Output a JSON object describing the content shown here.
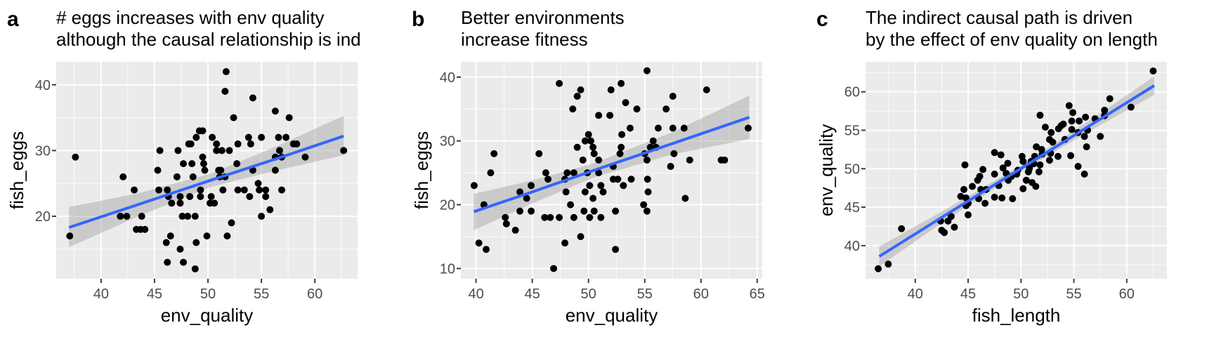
{
  "chart_data": [
    {
      "type": "scatter",
      "panel_label": "a",
      "title": [
        "# eggs increases with env quality",
        "although the causal relationship is ind"
      ],
      "xlabel": "env_quality",
      "ylabel": "fish_eggs",
      "xlim": [
        35.8,
        64.0
      ],
      "ylim": [
        10.5,
        43.5
      ],
      "xticks": [
        40,
        45,
        50,
        55,
        60
      ],
      "yticks": [
        20,
        30,
        40
      ],
      "xminor": [
        37.5,
        42.5,
        47.5,
        52.5,
        57.5,
        62.5
      ],
      "yminor": [
        15,
        25,
        35
      ],
      "grid": true,
      "points": [
        [
          37.07,
          17
        ],
        [
          37.6,
          29
        ],
        [
          42.06,
          26
        ],
        [
          41.8,
          20
        ],
        [
          42.4,
          20
        ],
        [
          43.1,
          24
        ],
        [
          43.3,
          18
        ],
        [
          43.7,
          18
        ],
        [
          44.1,
          18
        ],
        [
          43.8,
          20
        ],
        [
          45.3,
          27
        ],
        [
          45.5,
          30
        ],
        [
          45.4,
          24
        ],
        [
          46.2,
          24
        ],
        [
          46.3,
          23
        ],
        [
          46.6,
          22
        ],
        [
          46.1,
          16
        ],
        [
          46.5,
          17
        ],
        [
          46.2,
          13
        ],
        [
          47.1,
          26
        ],
        [
          47.2,
          30
        ],
        [
          47.4,
          23
        ],
        [
          47.4,
          22
        ],
        [
          47.4,
          15
        ],
        [
          47.7,
          13
        ],
        [
          47.7,
          28
        ],
        [
          47.6,
          20
        ],
        [
          48.1,
          20
        ],
        [
          48.3,
          23
        ],
        [
          48.2,
          31
        ],
        [
          48.4,
          31
        ],
        [
          48.5,
          28
        ],
        [
          48.6,
          26
        ],
        [
          48.9,
          32
        ],
        [
          48.8,
          20
        ],
        [
          48.9,
          16
        ],
        [
          48.8,
          12
        ],
        [
          49.2,
          33
        ],
        [
          49.5,
          33
        ],
        [
          49.5,
          29
        ],
        [
          49.6,
          28
        ],
        [
          49.7,
          27
        ],
        [
          49.3,
          24
        ],
        [
          49.3,
          23
        ],
        [
          49.9,
          17
        ],
        [
          50.3,
          23
        ],
        [
          50.2,
          22
        ],
        [
          50.6,
          22
        ],
        [
          50.4,
          32
        ],
        [
          50.8,
          31
        ],
        [
          50.8,
          30
        ],
        [
          51.0,
          27
        ],
        [
          51.2,
          27
        ],
        [
          51.1,
          26
        ],
        [
          51.6,
          26
        ],
        [
          51.4,
          24
        ],
        [
          51.3,
          30
        ],
        [
          51.6,
          39
        ],
        [
          51.7,
          42
        ],
        [
          51.8,
          17
        ],
        [
          52.0,
          30
        ],
        [
          52.2,
          19
        ],
        [
          52.4,
          35
        ],
        [
          52.8,
          31
        ],
        [
          52.7,
          28
        ],
        [
          52.8,
          24
        ],
        [
          53.4,
          24
        ],
        [
          53.8,
          32
        ],
        [
          54.0,
          31
        ],
        [
          53.9,
          23
        ],
        [
          54.2,
          27
        ],
        [
          54.2,
          38
        ],
        [
          54.7,
          25
        ],
        [
          54.8,
          24
        ],
        [
          55.4,
          24
        ],
        [
          55.4,
          23
        ],
        [
          55.0,
          32
        ],
        [
          55.0,
          20
        ],
        [
          55.8,
          21
        ],
        [
          56.3,
          36
        ],
        [
          56.3,
          27
        ],
        [
          56.3,
          29
        ],
        [
          56.6,
          32
        ],
        [
          56.7,
          30
        ],
        [
          56.9,
          29
        ],
        [
          56.9,
          24
        ],
        [
          57.3,
          32
        ],
        [
          57.6,
          35
        ],
        [
          58.0,
          31
        ],
        [
          58.3,
          31
        ],
        [
          59.1,
          29
        ],
        [
          62.7,
          30
        ]
      ],
      "fit": {
        "x": [
          37.0,
          43.5,
          50.3,
          56.5,
          62.7
        ],
        "y": [
          18.3,
          21.8,
          25.5,
          28.8,
          32.2
        ],
        "lower": [
          15.3,
          20.0,
          24.5,
          27.0,
          29.3
        ],
        "upper": [
          21.4,
          23.5,
          26.5,
          30.7,
          35.3
        ]
      },
      "colors": {
        "points": "#000000",
        "fit": "#3366ff",
        "band": "#999999",
        "panel": "#ebebeb"
      }
    },
    {
      "type": "scatter",
      "panel_label": "b",
      "title": [
        "Better environments",
        "increase fitness"
      ],
      "xlabel": "env_quality",
      "ylabel": "fish_eggs",
      "xlim": [
        38.65,
        65.45
      ],
      "ylim": [
        8.4,
        42.4
      ],
      "xticks": [
        40,
        45,
        50,
        55,
        60,
        65
      ],
      "yticks": [
        10,
        20,
        30,
        40
      ],
      "xminor": [
        42.5,
        47.5,
        52.5,
        57.5,
        62.5
      ],
      "yminor": [
        15,
        25,
        35
      ],
      "grid": true,
      "points": [
        [
          39.83,
          23
        ],
        [
          40.25,
          14
        ],
        [
          40.7,
          20
        ],
        [
          40.9,
          13
        ],
        [
          41.3,
          25
        ],
        [
          41.6,
          28
        ],
        [
          42.6,
          18
        ],
        [
          42.7,
          17
        ],
        [
          43.5,
          16
        ],
        [
          43.9,
          22
        ],
        [
          43.9,
          19
        ],
        [
          44.5,
          21
        ],
        [
          44.9,
          23
        ],
        [
          44.9,
          19
        ],
        [
          45.6,
          28
        ],
        [
          46.2,
          25
        ],
        [
          46.4,
          24
        ],
        [
          46.1,
          18
        ],
        [
          46.6,
          18
        ],
        [
          46.9,
          10
        ],
        [
          47.4,
          39
        ],
        [
          47.4,
          18
        ],
        [
          47.9,
          14
        ],
        [
          47.9,
          24
        ],
        [
          48.1,
          25
        ],
        [
          48.0,
          22
        ],
        [
          48.4,
          20
        ],
        [
          48.6,
          35
        ],
        [
          48.7,
          25
        ],
        [
          48.7,
          18
        ],
        [
          49.0,
          29
        ],
        [
          49.0,
          37
        ],
        [
          49.3,
          38
        ],
        [
          49.3,
          15
        ],
        [
          49.5,
          27
        ],
        [
          49.6,
          19
        ],
        [
          49.7,
          22
        ],
        [
          49.7,
          30
        ],
        [
          49.9,
          25
        ],
        [
          50.0,
          31
        ],
        [
          50.2,
          30
        ],
        [
          50.1,
          23
        ],
        [
          50.1,
          18
        ],
        [
          50.4,
          29
        ],
        [
          50.4,
          21
        ],
        [
          50.5,
          19
        ],
        [
          50.5,
          28
        ],
        [
          50.9,
          34
        ],
        [
          50.9,
          27
        ],
        [
          50.9,
          25
        ],
        [
          51.1,
          23
        ],
        [
          51.3,
          22
        ],
        [
          51.1,
          18
        ],
        [
          51.9,
          34
        ],
        [
          52.0,
          38
        ],
        [
          52.2,
          26
        ],
        [
          52.2,
          24
        ],
        [
          52.4,
          13
        ],
        [
          52.4,
          19
        ],
        [
          52.6,
          24
        ],
        [
          52.8,
          28
        ],
        [
          52.9,
          29
        ],
        [
          52.96,
          31
        ],
        [
          52.9,
          39
        ],
        [
          53.1,
          23
        ],
        [
          53.3,
          36
        ],
        [
          53.7,
          32
        ],
        [
          53.8,
          24
        ],
        [
          54.3,
          35
        ],
        [
          54.9,
          20
        ],
        [
          55.2,
          41
        ],
        [
          55.2,
          27
        ],
        [
          55.25,
          24
        ],
        [
          55.3,
          22
        ],
        [
          55.2,
          19
        ],
        [
          55.0,
          28
        ],
        [
          55.5,
          29
        ],
        [
          55.75,
          30
        ],
        [
          56.0,
          29
        ],
        [
          56.2,
          32
        ],
        [
          56.9,
          35
        ],
        [
          57.3,
          26
        ],
        [
          57.5,
          37
        ],
        [
          57.5,
          32
        ],
        [
          57.6,
          28
        ],
        [
          58.5,
          32
        ],
        [
          58.6,
          21
        ],
        [
          59.0,
          27
        ],
        [
          60.5,
          38
        ],
        [
          61.8,
          27
        ],
        [
          62.1,
          27
        ],
        [
          64.2,
          32
        ]
      ],
      "fit": {
        "x": [
          39.8,
          45.0,
          50.5,
          57.5,
          64.3
        ],
        "y": [
          18.9,
          22.0,
          25.4,
          29.6,
          33.7
        ],
        "lower": [
          16.0,
          20.2,
          24.3,
          27.9,
          30.3
        ],
        "upper": [
          21.7,
          23.8,
          26.5,
          31.4,
          37.1
        ]
      },
      "colors": {
        "points": "#000000",
        "fit": "#3366ff",
        "band": "#999999",
        "panel": "#ebebeb"
      }
    },
    {
      "type": "scatter",
      "panel_label": "c",
      "title": [
        "The indirect causal path is driven",
        "by the effect of env quality on length"
      ],
      "xlabel": "fish_length",
      "ylabel": "env_quality",
      "xlim": [
        35.3,
        63.8
      ],
      "ylim": [
        35.7,
        63.9
      ],
      "xticks": [
        40,
        45,
        50,
        55,
        60
      ],
      "yticks": [
        40,
        45,
        50,
        55,
        60
      ],
      "xminor": [
        37.5,
        42.5,
        47.5,
        52.5,
        57.5,
        62.5
      ],
      "yminor": [
        37.5,
        42.5,
        47.5,
        52.5,
        57.5,
        62.5
      ],
      "grid": true,
      "points": [
        [
          36.5,
          37.0
        ],
        [
          37.45,
          37.6
        ],
        [
          38.7,
          42.2
        ],
        [
          42.4,
          43.2
        ],
        [
          42.5,
          42.0
        ],
        [
          42.75,
          41.7
        ],
        [
          43.1,
          43.2
        ],
        [
          43.4,
          43.8
        ],
        [
          43.7,
          42.4
        ],
        [
          44.3,
          46.4
        ],
        [
          44.6,
          47.3
        ],
        [
          44.7,
          50.5
        ],
        [
          44.8,
          46.2
        ],
        [
          44.8,
          45.2
        ],
        [
          45.0,
          45.5
        ],
        [
          45.0,
          44.0
        ],
        [
          45.4,
          47.7
        ],
        [
          45.9,
          48.5
        ],
        [
          46.1,
          49.0
        ],
        [
          46.0,
          46.1
        ],
        [
          46.2,
          47.3
        ],
        [
          46.4,
          49.9
        ],
        [
          46.6,
          45.5
        ],
        [
          46.7,
          47.3
        ],
        [
          47.5,
          52.1
        ],
        [
          47.5,
          49.3
        ],
        [
          47.5,
          46.3
        ],
        [
          47.9,
          47.8
        ],
        [
          48.1,
          51.8
        ],
        [
          48.2,
          46.2
        ],
        [
          48.3,
          50.1
        ],
        [
          48.6,
          49.4
        ],
        [
          48.75,
          50.7
        ],
        [
          48.8,
          48.5
        ],
        [
          49.1,
          49.0
        ],
        [
          49.2,
          46.1
        ],
        [
          49.6,
          49.3
        ],
        [
          49.7,
          49.8
        ],
        [
          50.1,
          51.6
        ],
        [
          50.2,
          50.95
        ],
        [
          50.2,
          47.4
        ],
        [
          50.5,
          48.5
        ],
        [
          50.7,
          49.6
        ],
        [
          50.8,
          50.05
        ],
        [
          50.96,
          50.95
        ],
        [
          51.05,
          48.2
        ],
        [
          51.2,
          50.65
        ],
        [
          51.3,
          51.6
        ],
        [
          51.4,
          47.7
        ],
        [
          51.45,
          52.85
        ],
        [
          51.7,
          49.6
        ],
        [
          51.8,
          56.95
        ],
        [
          51.8,
          50.5
        ],
        [
          52.0,
          51.9
        ],
        [
          51.95,
          52.5
        ],
        [
          52.3,
          55.4
        ],
        [
          52.7,
          51.1
        ],
        [
          52.8,
          52.0
        ],
        [
          52.7,
          53.8
        ],
        [
          52.85,
          54.7
        ],
        [
          53.0,
          53.45
        ],
        [
          53.5,
          51.6
        ],
        [
          53.55,
          55.2
        ],
        [
          53.8,
          55.6
        ],
        [
          54.0,
          55.8
        ],
        [
          54.15,
          53.8
        ],
        [
          54.55,
          58.2
        ],
        [
          54.7,
          51.7
        ],
        [
          54.8,
          56.2
        ],
        [
          54.8,
          55.1
        ],
        [
          54.9,
          57.3
        ],
        [
          55.4,
          54.7
        ],
        [
          55.4,
          50.3
        ],
        [
          55.5,
          56.2
        ],
        [
          56.0,
          49.3
        ],
        [
          56.0,
          54.2
        ],
        [
          56.1,
          56.7
        ],
        [
          56.2,
          52.85
        ],
        [
          56.3,
          55.0
        ],
        [
          57.0,
          56.5
        ],
        [
          57.5,
          54.2
        ],
        [
          57.9,
          57.6
        ],
        [
          57.9,
          56.9
        ],
        [
          58.4,
          59.1
        ],
        [
          60.4,
          58.0
        ],
        [
          62.5,
          62.7
        ]
      ],
      "fit": {
        "x": [
          36.6,
          43.0,
          50.2,
          56.5,
          62.6
        ],
        "y": [
          38.6,
          44.1,
          50.2,
          55.6,
          60.8
        ],
        "lower": [
          37.3,
          43.4,
          49.8,
          54.9,
          59.6
        ],
        "upper": [
          39.9,
          44.8,
          50.6,
          56.3,
          62.0
        ]
      },
      "colors": {
        "points": "#000000",
        "fit": "#3366ff",
        "band": "#999999",
        "panel": "#ebebeb"
      }
    }
  ]
}
